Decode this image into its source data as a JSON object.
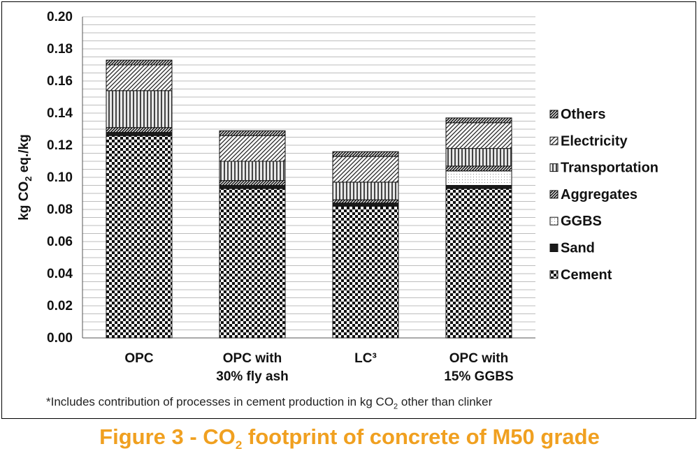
{
  "chart_data": {
    "type": "bar",
    "stacked": true,
    "categories": [
      "OPC",
      "OPC with\n30% fly ash",
      "LC³",
      "OPC with\n15% GGBS"
    ],
    "series": [
      {
        "name": "Cement",
        "pattern": "checker",
        "values": [
          0.126,
          0.093,
          0.082,
          0.093
        ]
      },
      {
        "name": "Sand",
        "pattern": "solid-dark",
        "values": [
          0.002,
          0.002,
          0.002,
          0.002
        ]
      },
      {
        "name": "GGBS",
        "pattern": "dots",
        "values": [
          0,
          0,
          0,
          0.009
        ]
      },
      {
        "name": "Aggregates",
        "pattern": "diag-dense",
        "values": [
          0.003,
          0.003,
          0.002,
          0.003
        ]
      },
      {
        "name": "Transportation",
        "pattern": "vertical",
        "values": [
          0.023,
          0.012,
          0.011,
          0.011
        ]
      },
      {
        "name": "Electricity",
        "pattern": "diag-wide",
        "values": [
          0.016,
          0.016,
          0.016,
          0.016
        ]
      },
      {
        "name": "Others",
        "pattern": "diag-dense",
        "values": [
          0.003,
          0.003,
          0.003,
          0.003
        ]
      }
    ],
    "ylabel": "kg CO2 eq./kg",
    "ylim": [
      0,
      0.2
    ],
    "ytick_labels": [
      "0.00",
      "0.02",
      "0.04",
      "0.06",
      "0.08",
      "0.10",
      "0.12",
      "0.14",
      "0.16",
      "0.18",
      "0.20"
    ],
    "grid": true,
    "legend_position": "right",
    "legend_order": [
      "Others",
      "Electricity",
      "Transportation",
      "Aggregates",
      "GGBS",
      "Sand",
      "Cement"
    ]
  },
  "footnote": {
    "text_before": "*Includes contribution of processes in cement production in kg CO",
    "sub": "2",
    "text_after": " other than clinker"
  },
  "caption": {
    "text_before": "Figure 3 - CO",
    "sub": "2",
    "text_after": " footprint of concrete of M50 grade"
  },
  "colors": {
    "caption": "#f0a020",
    "ink": "#111111",
    "grid": "#bdbdbd"
  }
}
